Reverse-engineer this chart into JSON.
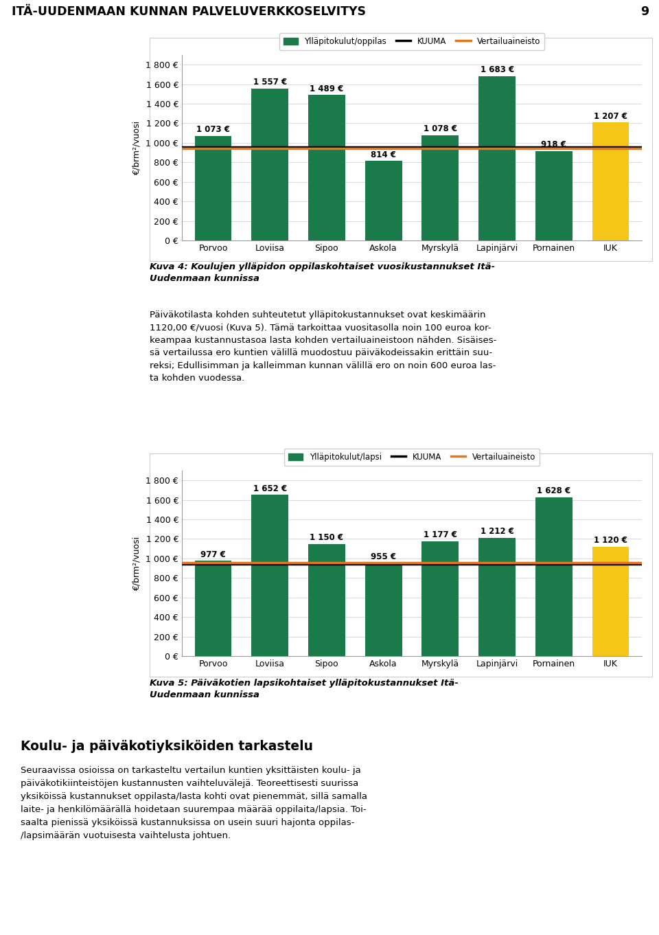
{
  "page_title": "ITÄ-UUDENMAAN KUNNAN PALVELUVERKKOSELVITYS",
  "page_number": "9",
  "chart1": {
    "ylabel": "€/brm²/vuosi",
    "categories": [
      "Porvoo",
      "Loviisa",
      "Sipoo",
      "Askola",
      "Myrskylä",
      "Lapinjärvi",
      "Pornainen",
      "IUK"
    ],
    "bar_values": [
      1073,
      1557,
      1489,
      814,
      1078,
      1683,
      918,
      1207
    ],
    "bar_colors": [
      "#1a7a4a",
      "#1a7a4a",
      "#1a7a4a",
      "#1a7a4a",
      "#1a7a4a",
      "#1a7a4a",
      "#1a7a4a",
      "#f5c518"
    ],
    "kuuma_line": 960,
    "vertailuaineisto_line": 940,
    "ylim": [
      0,
      1900
    ],
    "yticks": [
      0,
      200,
      400,
      600,
      800,
      1000,
      1200,
      1400,
      1600,
      1800
    ],
    "ytick_labels": [
      "0 €",
      "200 €",
      "400 €",
      "600 €",
      "800 €",
      "1 000 €",
      "1 200 €",
      "1 400 €",
      "1 600 €",
      "1 800 €"
    ],
    "legend_bar_label": "Ylläpitokulut/oppilas",
    "legend_kuuma_label": "KUUMA",
    "legend_vertailu_label": "Vertailuaineisto",
    "kuuma_color": "#000000",
    "vertailu_color": "#e07820"
  },
  "chart1_caption_bold": "Kuva 4: Koulujen ylläpidon oppilaskohtaiset vuosikustannukset Itä-\nUudenmaan kunnissa",
  "chart1_caption_normal": "Päiväkotilasta kohden suhteutetut ylläpitokustannukset ovat keskimäärin\n1120,00 €/vuosi (Kuva 5). Tämä tarkoittaa vuositasolla noin 100 euroa kor-\nkeampaa kustannustasoa lasta kohden vertailuaineistoon nähden. Sisäises-\nsä vertailussa ero kuntien välillä muodostuu päiväkodeissakin erittäin suu-\nreksi; Edullisimman ja kalleimman kunnan välillä ero on noin 600 euroa las-\nta kohden vuodessa.",
  "chart2": {
    "ylabel": "€/brm²/vuosi",
    "categories": [
      "Porvoo",
      "Loviisa",
      "Sipoo",
      "Askola",
      "Myrskylä",
      "Lapinjärvi",
      "Pornainen",
      "IUK"
    ],
    "bar_values": [
      977,
      1652,
      1150,
      955,
      1177,
      1212,
      1628,
      1120
    ],
    "bar_colors": [
      "#1a7a4a",
      "#1a7a4a",
      "#1a7a4a",
      "#1a7a4a",
      "#1a7a4a",
      "#1a7a4a",
      "#1a7a4a",
      "#f5c518"
    ],
    "kuuma_line": 940,
    "vertailuaineisto_line": 960,
    "ylim": [
      0,
      1900
    ],
    "yticks": [
      0,
      200,
      400,
      600,
      800,
      1000,
      1200,
      1400,
      1600,
      1800
    ],
    "ytick_labels": [
      "0 €",
      "200 €",
      "400 €",
      "600 €",
      "800 €",
      "1 000 €",
      "1 200 €",
      "1 400 €",
      "1 600 €",
      "1 800 €"
    ],
    "legend_bar_label": "Ylläpitokulut/lapsi",
    "legend_kuuma_label": "KUUMA",
    "legend_vertailu_label": "Vertailuaineisto",
    "kuuma_color": "#000000",
    "vertailu_color": "#e07820"
  },
  "chart2_caption_bold": "Kuva 5: Päiväkotien lapsikohtaiset ylläpitokustannukset Itä-\nUudenmaan kunnissa",
  "section_heading": "Koulu- ja päiväkotiyksiköiden tarkastelu",
  "body_text": "Seuraavissa osioissa on tarkasteltu vertailun kuntien yksittäisten koulu- ja\npäiväkotikiinteistöjen kustannusten vaihteluvälejä. Teoreettisesti suurissa\nyksiköissä kustannukset oppilasta/lasta kohti ovat pienemmät, sillä samalla\nlaite- ja henkilömäärällä hoidetaan suurempaa määrää oppilaita/lapsia. Toi-\nsaalta pienissä yksiköissä kustannuksissa on usein suuri hajonta oppilas-\n/lapsimäärän vuotuisesta vaihtelusta johtuen.",
  "background_color": "#ffffff",
  "bar_green": "#1a7a4a",
  "bar_yellow": "#f5c518"
}
